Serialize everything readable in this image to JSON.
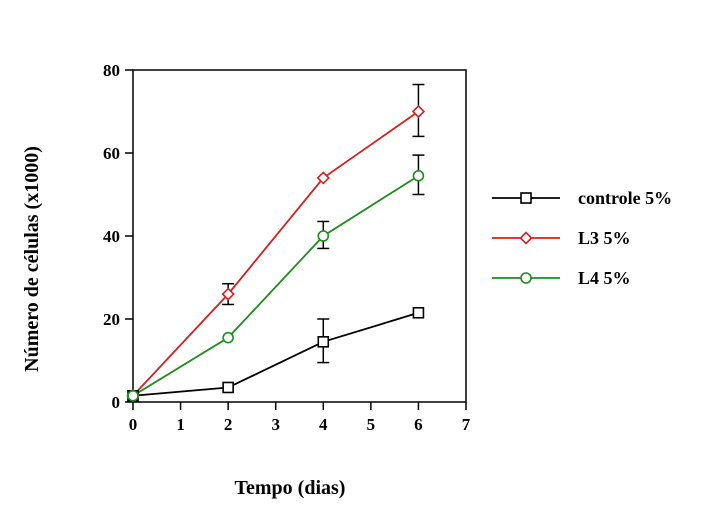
{
  "chart_data": {
    "type": "line",
    "xlabel": "Tempo (dias)",
    "ylabel": "Número de células (x1000)",
    "xlim": [
      0,
      7
    ],
    "ylim": [
      0,
      80
    ],
    "xticks": [
      0,
      1,
      2,
      3,
      4,
      5,
      6,
      7
    ],
    "yticks": [
      0,
      20,
      40,
      60,
      80
    ],
    "grid": false,
    "legend_position": "right",
    "series": [
      {
        "name": "controle 5%",
        "color": "#000000",
        "marker": "square",
        "x": [
          0,
          2,
          4,
          6
        ],
        "y": [
          1.5,
          3.5,
          14.5,
          21.5
        ],
        "error_upper": [
          null,
          null,
          20,
          null
        ],
        "error_lower": [
          null,
          null,
          9.5,
          null
        ]
      },
      {
        "name": "L3 5%",
        "color": "#d42020",
        "marker": "diamond",
        "x": [
          0,
          2,
          4,
          6
        ],
        "y": [
          1.5,
          26,
          54,
          70
        ],
        "error_upper": [
          null,
          28.5,
          null,
          76.5
        ],
        "error_lower": [
          null,
          23.5,
          null,
          64
        ]
      },
      {
        "name": "L4 5%",
        "color": "#1e8c1e",
        "marker": "circle",
        "x": [
          0,
          2,
          4,
          6
        ],
        "y": [
          1.5,
          15.5,
          40,
          54.5
        ],
        "error_upper": [
          null,
          null,
          43.5,
          59.5
        ],
        "error_lower": [
          null,
          null,
          37,
          50
        ]
      }
    ]
  }
}
